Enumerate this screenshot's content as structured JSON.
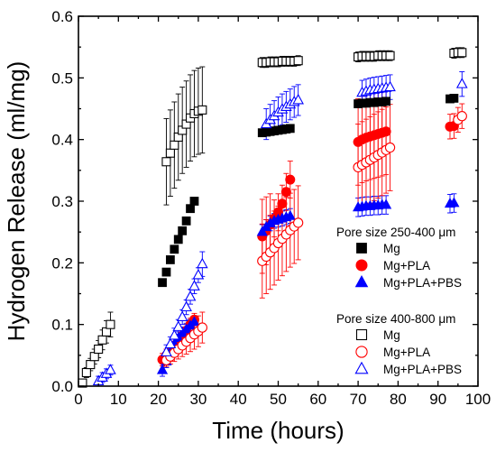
{
  "chart_data": {
    "type": "scatter",
    "xlabel": "Time (hours)",
    "ylabel": "Hydrogen Release (ml/mg)",
    "xlim": [
      0,
      100
    ],
    "ylim": [
      0,
      0.6
    ],
    "xticks": [
      "0",
      "10",
      "20",
      "30",
      "40",
      "50",
      "60",
      "70",
      "80",
      "90",
      "100"
    ],
    "yticks": [
      "0.0",
      "0.1",
      "0.2",
      "0.3",
      "0.4",
      "0.5",
      "0.6"
    ],
    "grid": false,
    "legend_groups": [
      {
        "title": "Pore size 250-400 μm",
        "entries": [
          "Mg",
          "Mg+PLA",
          "Mg+PLA+PBS"
        ]
      },
      {
        "title": "Pore size 400-800 μm",
        "entries": [
          "Mg",
          "Mg+PLA",
          "Mg+PLA+PBS"
        ]
      }
    ],
    "series": [
      {
        "name": "Mg",
        "group": 0,
        "marker": "square",
        "filled": true,
        "color": "#000000",
        "x": [
          21,
          22,
          23,
          24,
          25,
          26,
          27,
          28,
          29,
          46,
          47,
          48,
          49,
          50,
          51,
          52,
          53,
          70,
          71,
          72,
          73,
          74,
          75,
          76,
          77,
          93,
          94
        ],
        "y": [
          0.168,
          0.185,
          0.205,
          0.222,
          0.238,
          0.252,
          0.268,
          0.288,
          0.3,
          0.411,
          0.412,
          0.413,
          0.414,
          0.415,
          0.416,
          0.417,
          0.418,
          0.458,
          0.459,
          0.459,
          0.46,
          0.46,
          0.461,
          0.461,
          0.462,
          0.466,
          0.467
        ],
        "err": []
      },
      {
        "name": "Mg+PLA",
        "group": 0,
        "marker": "circle",
        "filled": true,
        "color": "#ff0000",
        "x": [
          21,
          22,
          23,
          24,
          25,
          26,
          27,
          28,
          29,
          46,
          47,
          48,
          49,
          50,
          51,
          52,
          53,
          70,
          71,
          72,
          73,
          74,
          75,
          76,
          77,
          93,
          94
        ],
        "y": [
          0.043,
          0.05,
          0.058,
          0.066,
          0.074,
          0.082,
          0.09,
          0.1,
          0.108,
          0.243,
          0.252,
          0.262,
          0.272,
          0.282,
          0.296,
          0.315,
          0.335,
          0.396,
          0.4,
          0.403,
          0.405,
          0.407,
          0.409,
          0.411,
          0.413,
          0.421,
          0.422
        ],
        "err": [
          0.01,
          0.01,
          0.01,
          0.01,
          0.01,
          0.01,
          0.01,
          0.01,
          0.01,
          0.06,
          0.055,
          0.05,
          0.03,
          0.03,
          0.03,
          0.03,
          0.03,
          0.07,
          0.07,
          0.07,
          0.07,
          0.07,
          0.07,
          0.07,
          0.07,
          0.02,
          0.02
        ]
      },
      {
        "name": "Mg+PLA+PBS",
        "group": 0,
        "marker": "triangle",
        "filled": true,
        "color": "#0000ff",
        "x": [
          21,
          22,
          23,
          24,
          25,
          26,
          27,
          28,
          29,
          46,
          47,
          48,
          49,
          50,
          51,
          52,
          53,
          70,
          71,
          72,
          73,
          74,
          75,
          76,
          77,
          93,
          94
        ],
        "y": [
          0.026,
          0.04,
          0.055,
          0.068,
          0.078,
          0.086,
          0.092,
          0.098,
          0.104,
          0.25,
          0.258,
          0.264,
          0.268,
          0.27,
          0.272,
          0.274,
          0.276,
          0.29,
          0.291,
          0.292,
          0.292,
          0.293,
          0.293,
          0.294,
          0.294,
          0.296,
          0.297
        ],
        "err": [
          0.01,
          0.01,
          0.01,
          0.01,
          0.01,
          0.01,
          0.01,
          0.01,
          0.01,
          0.012,
          0.012,
          0.012,
          0.012,
          0.012,
          0.012,
          0.012,
          0.012,
          0.015,
          0.015,
          0.015,
          0.015,
          0.015,
          0.015,
          0.015,
          0.015,
          0.015,
          0.015
        ]
      },
      {
        "name": "Mg",
        "group": 1,
        "marker": "square",
        "filled": false,
        "color": "#000000",
        "x": [
          1,
          2,
          3,
          4,
          5,
          6,
          7,
          8,
          22,
          23,
          24,
          25,
          26,
          27,
          28,
          29,
          30,
          31,
          46,
          47,
          48,
          49,
          50,
          51,
          52,
          53,
          54,
          55,
          70,
          71,
          72,
          73,
          74,
          75,
          76,
          77,
          78,
          94,
          95,
          96
        ],
        "y": [
          0.005,
          0.022,
          0.035,
          0.048,
          0.06,
          0.075,
          0.088,
          0.1,
          0.364,
          0.378,
          0.391,
          0.404,
          0.415,
          0.425,
          0.435,
          0.442,
          0.446,
          0.448,
          0.525,
          0.525,
          0.526,
          0.526,
          0.526,
          0.527,
          0.527,
          0.527,
          0.527,
          0.528,
          0.534,
          0.535,
          0.535,
          0.535,
          0.535,
          0.536,
          0.536,
          0.536,
          0.536,
          0.54,
          0.541,
          0.541
        ],
        "err": [
          0.005,
          0.008,
          0.01,
          0.012,
          0.014,
          0.016,
          0.018,
          0.02,
          0.07,
          0.07,
          0.07,
          0.07,
          0.07,
          0.07,
          0.07,
          0.07,
          0.07,
          0.07,
          0.008,
          0.008,
          0.008,
          0.008,
          0.008,
          0.008,
          0.008,
          0.008,
          0.008,
          0.008,
          0.008,
          0.008,
          0.008,
          0.008,
          0.008,
          0.008,
          0.008,
          0.008,
          0.008,
          0.008,
          0.008,
          0.008
        ]
      },
      {
        "name": "Mg+PLA",
        "group": 1,
        "marker": "circle",
        "filled": false,
        "color": "#ff0000",
        "x": [
          22,
          23,
          24,
          25,
          26,
          27,
          28,
          29,
          30,
          31,
          46,
          47,
          48,
          49,
          50,
          51,
          52,
          53,
          54,
          55,
          70,
          71,
          72,
          73,
          74,
          75,
          76,
          77,
          78,
          95,
          96
        ],
        "y": [
          0.042,
          0.048,
          0.054,
          0.06,
          0.066,
          0.072,
          0.078,
          0.084,
          0.089,
          0.095,
          0.203,
          0.21,
          0.217,
          0.224,
          0.232,
          0.239,
          0.246,
          0.253,
          0.259,
          0.265,
          0.355,
          0.359,
          0.363,
          0.367,
          0.371,
          0.375,
          0.379,
          0.383,
          0.387,
          0.432,
          0.438
        ],
        "err": [
          0.01,
          0.012,
          0.014,
          0.016,
          0.018,
          0.02,
          0.022,
          0.024,
          0.025,
          0.025,
          0.06,
          0.06,
          0.06,
          0.06,
          0.06,
          0.06,
          0.06,
          0.06,
          0.06,
          0.06,
          0.07,
          0.07,
          0.07,
          0.07,
          0.07,
          0.07,
          0.07,
          0.07,
          0.07,
          0.02,
          0.02
        ]
      },
      {
        "name": "Mg+PLA+PBS",
        "group": 1,
        "marker": "triangle",
        "filled": false,
        "color": "#0000ff",
        "x": [
          5,
          6,
          7,
          8,
          22,
          23,
          24,
          25,
          26,
          27,
          28,
          29,
          30,
          31,
          47,
          48,
          49,
          50,
          51,
          52,
          53,
          54,
          55,
          71,
          72,
          73,
          74,
          75,
          76,
          77,
          78,
          96
        ],
        "y": [
          0.008,
          0.014,
          0.02,
          0.026,
          0.055,
          0.068,
          0.082,
          0.096,
          0.112,
          0.128,
          0.145,
          0.162,
          0.18,
          0.198,
          0.425,
          0.432,
          0.438,
          0.444,
          0.449,
          0.453,
          0.457,
          0.461,
          0.464,
          0.476,
          0.478,
          0.48,
          0.481,
          0.482,
          0.483,
          0.484,
          0.485,
          0.49
        ],
        "err": [
          0.008,
          0.008,
          0.008,
          0.008,
          0.012,
          0.012,
          0.012,
          0.012,
          0.012,
          0.012,
          0.012,
          0.012,
          0.012,
          0.02,
          0.025,
          0.025,
          0.025,
          0.025,
          0.025,
          0.025,
          0.025,
          0.025,
          0.025,
          0.02,
          0.02,
          0.02,
          0.02,
          0.02,
          0.02,
          0.02,
          0.02,
          0.02
        ]
      }
    ]
  }
}
